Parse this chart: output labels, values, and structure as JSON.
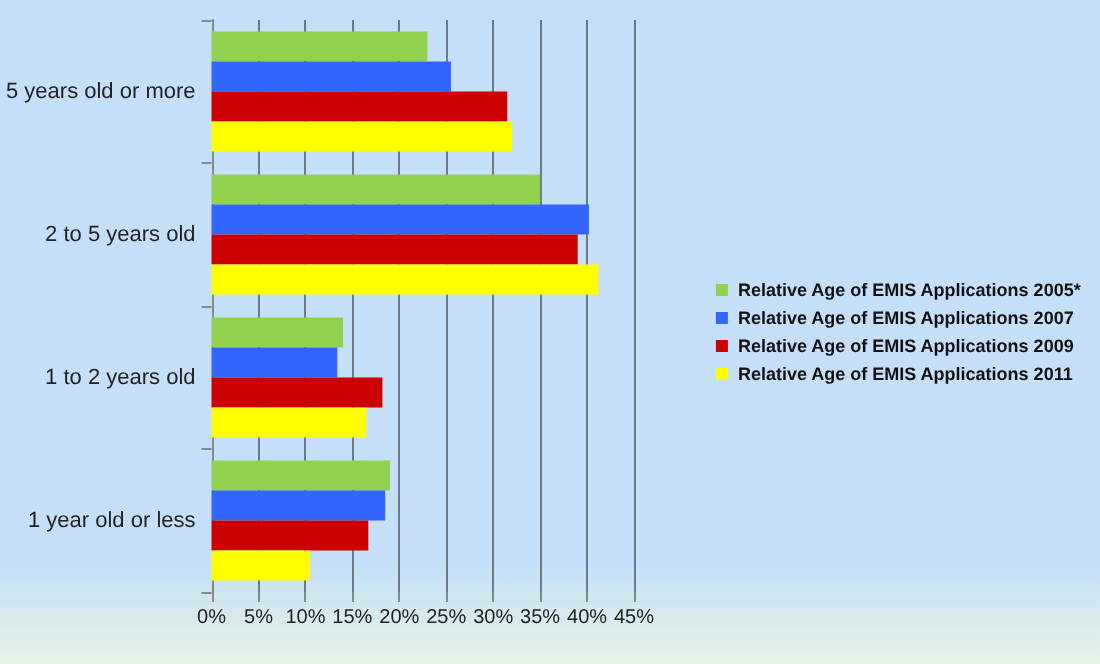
{
  "chart_data": {
    "type": "bar",
    "orientation": "horizontal",
    "categories": [
      "5 years old or more",
      "2 to 5 years old",
      "1 to 2 years old",
      "1 year old or less"
    ],
    "series": [
      {
        "name": "Relative Age of EMIS Applications 2005*",
        "color": "#92d050",
        "values": [
          23,
          35,
          14,
          19
        ]
      },
      {
        "name": "Relative Age of EMIS Applications 2007",
        "color": "#3366ff",
        "values": [
          25.5,
          40.2,
          13.4,
          18.5
        ]
      },
      {
        "name": "Relative Age of EMIS Applications 2009",
        "color": "#cc0000",
        "values": [
          31.5,
          39,
          18.2,
          16.7
        ]
      },
      {
        "name": "Relative Age of EMIS Applications 2011",
        "color": "#ffff00",
        "values": [
          32,
          41.2,
          16.5,
          10.5
        ]
      }
    ],
    "xlim": [
      0,
      45
    ],
    "xticks": [
      {
        "value": 0,
        "label": "0%"
      },
      {
        "value": 5,
        "label": "5%"
      },
      {
        "value": 10,
        "label": "10%"
      },
      {
        "value": 15,
        "label": "15%"
      },
      {
        "value": 20,
        "label": "20%"
      },
      {
        "value": 25,
        "label": "25%"
      },
      {
        "value": 30,
        "label": "30%"
      },
      {
        "value": 35,
        "label": "35%"
      },
      {
        "value": 40,
        "label": "40%"
      },
      {
        "value": 45,
        "label": "45%"
      }
    ],
    "grid": "x",
    "legend": "right"
  }
}
